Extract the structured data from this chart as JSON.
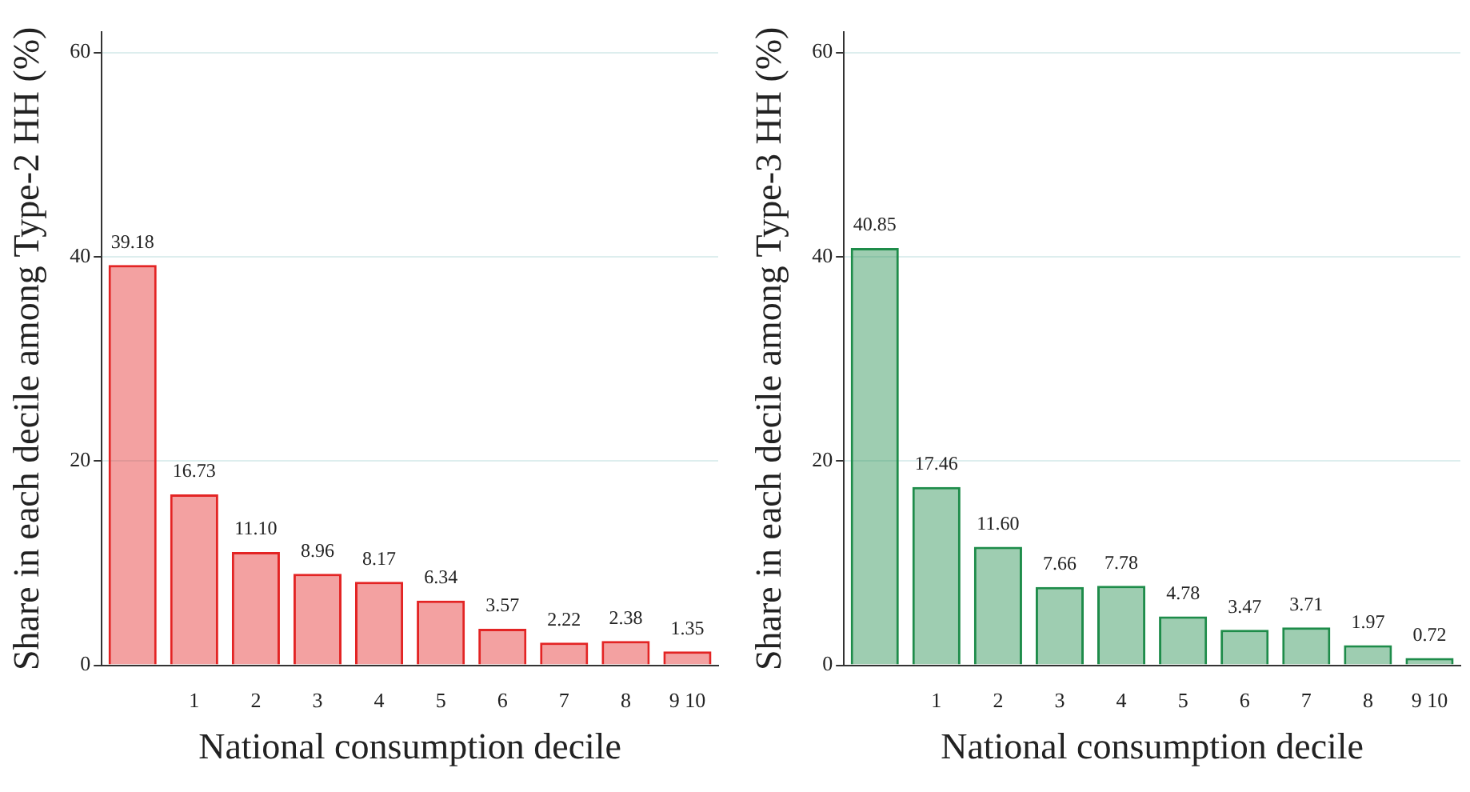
{
  "chart_data": [
    {
      "type": "bar",
      "xlabel": "National consumption decile",
      "ylabel": "Share in each decile among Type-2 HH (%)",
      "categories": [
        null,
        "1",
        "2",
        "3",
        "4",
        "5",
        "6",
        "7",
        "8",
        "9 10"
      ],
      "series": [
        {
          "color": "#e32424",
          "values": [
            39.18,
            16.73,
            11.1,
            8.96,
            8.17,
            6.34,
            3.57,
            2.22,
            2.38,
            1.35
          ],
          "value_labels": [
            "39.18",
            "16.73",
            "11.10",
            "8.96",
            "8.17",
            "6.34",
            "3.57",
            "2.22",
            "2.38",
            "1.35"
          ]
        }
      ],
      "ylim": [
        0,
        62
      ],
      "yticks": [
        0,
        20,
        40,
        60
      ],
      "grid": "y",
      "legend": false
    },
    {
      "type": "bar",
      "xlabel": "National consumption decile",
      "ylabel": "Share in each decile among Type-3 HH (%)",
      "categories": [
        null,
        "1",
        "2",
        "3",
        "4",
        "5",
        "6",
        "7",
        "8",
        "9 10"
      ],
      "series": [
        {
          "color": "#1e8c4a",
          "values": [
            40.85,
            17.46,
            11.6,
            7.66,
            7.78,
            4.78,
            3.47,
            3.71,
            1.97,
            0.72
          ],
          "value_labels": [
            "40.85",
            "17.46",
            "11.60",
            "7.66",
            "7.78",
            "4.78",
            "3.47",
            "3.71",
            "1.97",
            "0.72"
          ]
        }
      ],
      "ylim": [
        0,
        62
      ],
      "yticks": [
        0,
        20,
        40,
        60
      ],
      "grid": "y",
      "legend": false
    }
  ]
}
